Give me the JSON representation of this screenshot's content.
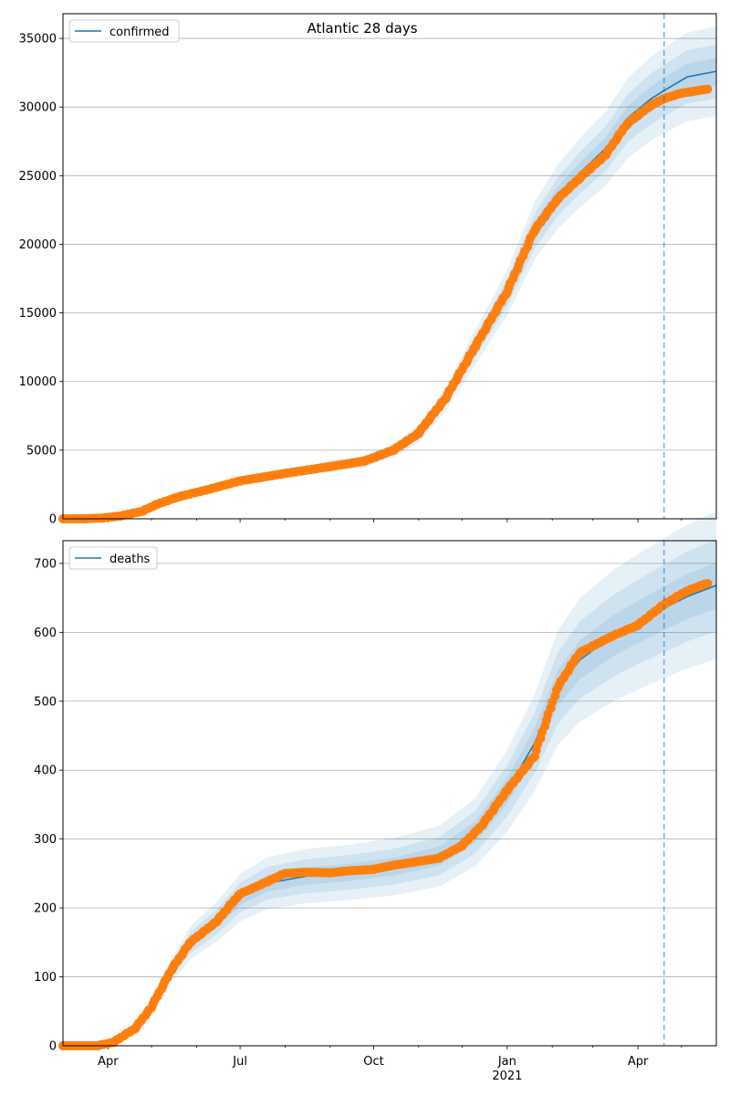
{
  "figure": {
    "title": "Atlantic 28 days"
  },
  "chart_data": [
    {
      "type": "line",
      "title": "Atlantic 28 days",
      "xlabel": "",
      "ylabel": "",
      "legend": "top-left",
      "grid": "horizontal",
      "xlim": [
        "2020-03-01",
        "2021-05-25"
      ],
      "ylim": [
        0,
        36800
      ],
      "yticks": [
        0,
        5000,
        10000,
        15000,
        20000,
        25000,
        30000,
        35000
      ],
      "xticks": [
        {
          "date": "2020-04-01",
          "label": "Apr",
          "sublabel": ""
        },
        {
          "date": "2020-07-01",
          "label": "Jul",
          "sublabel": ""
        },
        {
          "date": "2020-10-01",
          "label": "Oct",
          "sublabel": ""
        },
        {
          "date": "2021-01-01",
          "label": "Jan",
          "sublabel": ""
        },
        {
          "date": "2021-04-01",
          "label": "Apr",
          "sublabel": ""
        }
      ],
      "forecast_start": "2021-04-19",
      "series": [
        {
          "name": "confirmed",
          "color": "#1f77b4",
          "kind": "model",
          "points": [
            [
              "2020-03-01",
              0
            ],
            [
              "2020-03-15",
              0
            ],
            [
              "2020-03-28",
              50
            ],
            [
              "2020-04-10",
              200
            ],
            [
              "2020-04-25",
              500
            ],
            [
              "2020-05-05",
              1000
            ],
            [
              "2020-05-20",
              1600
            ],
            [
              "2020-06-10",
              2150
            ],
            [
              "2020-07-01",
              2750
            ],
            [
              "2020-08-01",
              3250
            ],
            [
              "2020-09-01",
              3800
            ],
            [
              "2020-09-25",
              4200
            ],
            [
              "2020-10-15",
              5000
            ],
            [
              "2020-11-01",
              6200
            ],
            [
              "2020-11-20",
              8800
            ],
            [
              "2020-12-10",
              12500
            ],
            [
              "2021-01-01",
              16500
            ],
            [
              "2021-01-20",
              21000
            ],
            [
              "2021-02-05",
              23500
            ],
            [
              "2021-02-20",
              25200
            ],
            [
              "2021-03-10",
              27000
            ],
            [
              "2021-03-25",
              29200
            ],
            [
              "2021-04-10",
              30600
            ],
            [
              "2021-04-19",
              31200
            ],
            [
              "2021-05-05",
              32200
            ],
            [
              "2021-05-25",
              32600
            ]
          ],
          "band_widths": [
            0.03,
            0.06,
            0.1
          ]
        },
        {
          "name": "",
          "color": "#ff7f0e",
          "kind": "observed",
          "points": [
            [
              "2020-03-01",
              0
            ],
            [
              "2020-03-15",
              0
            ],
            [
              "2020-03-28",
              50
            ],
            [
              "2020-04-10",
              200
            ],
            [
              "2020-04-25",
              550
            ],
            [
              "2020-05-05",
              1050
            ],
            [
              "2020-05-20",
              1600
            ],
            [
              "2020-06-10",
              2150
            ],
            [
              "2020-07-01",
              2750
            ],
            [
              "2020-08-01",
              3300
            ],
            [
              "2020-09-01",
              3800
            ],
            [
              "2020-09-25",
              4200
            ],
            [
              "2020-10-15",
              5000
            ],
            [
              "2020-11-01",
              6200
            ],
            [
              "2020-11-20",
              8800
            ],
            [
              "2020-12-10",
              12500
            ],
            [
              "2021-01-01",
              16500
            ],
            [
              "2021-01-20",
              21000
            ],
            [
              "2021-02-05",
              23300
            ],
            [
              "2021-02-20",
              24800
            ],
            [
              "2021-03-10",
              26500
            ],
            [
              "2021-03-25",
              28800
            ],
            [
              "2021-04-10",
              30100
            ],
            [
              "2021-04-19",
              30600
            ],
            [
              "2021-05-01",
              31000
            ],
            [
              "2021-05-19",
              31300
            ]
          ]
        }
      ]
    },
    {
      "type": "line",
      "title": "",
      "xlabel": "",
      "ylabel": "",
      "legend": "top-left",
      "grid": "horizontal",
      "xlim": [
        "2020-03-01",
        "2021-05-25"
      ],
      "ylim": [
        0,
        733
      ],
      "yticks": [
        0,
        100,
        200,
        300,
        400,
        500,
        600,
        700
      ],
      "xticks": [
        {
          "date": "2020-04-01",
          "label": "Apr",
          "sublabel": ""
        },
        {
          "date": "2020-07-01",
          "label": "Jul",
          "sublabel": ""
        },
        {
          "date": "2020-10-01",
          "label": "Oct",
          "sublabel": ""
        },
        {
          "date": "2021-01-01",
          "label": "Jan",
          "sublabel": "2021"
        },
        {
          "date": "2021-04-01",
          "label": "Apr",
          "sublabel": ""
        }
      ],
      "forecast_start": "2021-04-19",
      "series": [
        {
          "name": "deaths",
          "color": "#1f77b4",
          "kind": "model",
          "points": [
            [
              "2020-03-01",
              0
            ],
            [
              "2020-03-25",
              0
            ],
            [
              "2020-04-05",
              5
            ],
            [
              "2020-04-20",
              25
            ],
            [
              "2020-05-01",
              55
            ],
            [
              "2020-05-15",
              110
            ],
            [
              "2020-05-28",
              150
            ],
            [
              "2020-06-15",
              180
            ],
            [
              "2020-07-01",
              215
            ],
            [
              "2020-07-20",
              236
            ],
            [
              "2020-08-15",
              246
            ],
            [
              "2020-09-15",
              252
            ],
            [
              "2020-10-15",
              260
            ],
            [
              "2020-11-15",
              275
            ],
            [
              "2020-12-10",
              310
            ],
            [
              "2021-01-01",
              370
            ],
            [
              "2021-01-20",
              440
            ],
            [
              "2021-02-05",
              520
            ],
            [
              "2021-02-20",
              560
            ],
            [
              "2021-03-15",
              595
            ],
            [
              "2021-04-01",
              615
            ],
            [
              "2021-04-19",
              635
            ],
            [
              "2021-05-05",
              652
            ],
            [
              "2021-05-25",
              668
            ]
          ],
          "band_widths": [
            0.05,
            0.1,
            0.16
          ]
        },
        {
          "name": "",
          "color": "#ff7f0e",
          "kind": "observed",
          "points": [
            [
              "2020-03-01",
              0
            ],
            [
              "2020-03-25",
              0
            ],
            [
              "2020-04-05",
              5
            ],
            [
              "2020-04-20",
              25
            ],
            [
              "2020-05-01",
              55
            ],
            [
              "2020-05-15",
              110
            ],
            [
              "2020-05-28",
              150
            ],
            [
              "2020-06-15",
              180
            ],
            [
              "2020-07-01",
              220
            ],
            [
              "2020-07-20",
              238
            ],
            [
              "2020-08-01",
              250
            ],
            [
              "2020-08-15",
              252
            ],
            [
              "2020-09-01",
              251
            ],
            [
              "2020-09-15",
              254
            ],
            [
              "2020-10-01",
              256
            ],
            [
              "2020-10-15",
              262
            ],
            [
              "2020-11-15",
              272
            ],
            [
              "2020-12-01",
              290
            ],
            [
              "2020-12-15",
              320
            ],
            [
              "2021-01-01",
              370
            ],
            [
              "2021-01-20",
              420
            ],
            [
              "2021-02-05",
              520
            ],
            [
              "2021-02-20",
              570
            ],
            [
              "2021-03-15",
              595
            ],
            [
              "2021-04-01",
              610
            ],
            [
              "2021-04-19",
              640
            ],
            [
              "2021-05-05",
              660
            ],
            [
              "2021-05-19",
              671
            ]
          ]
        }
      ]
    }
  ]
}
